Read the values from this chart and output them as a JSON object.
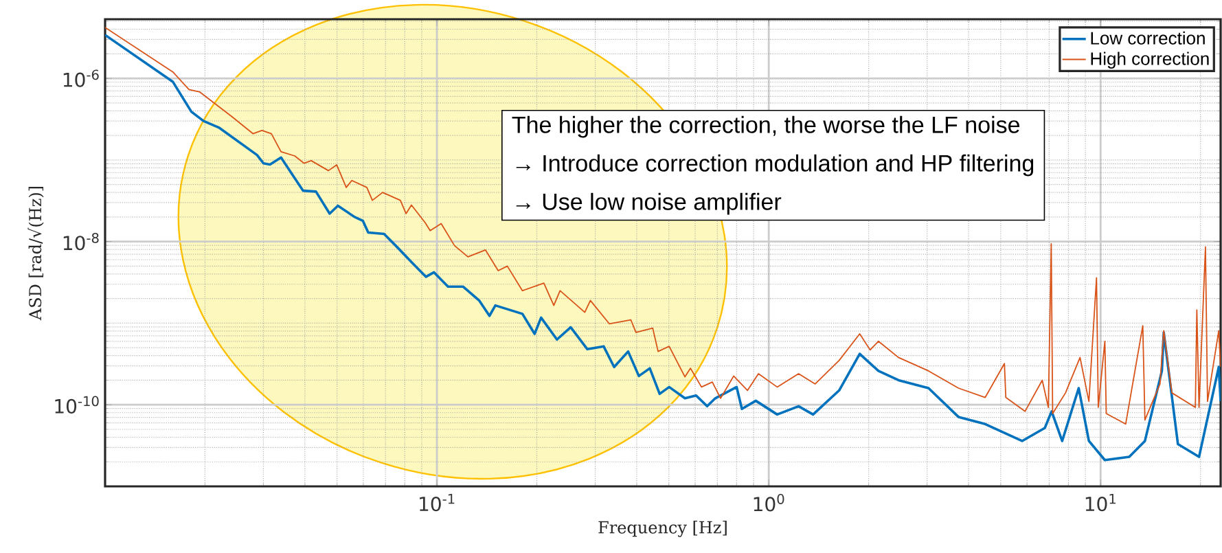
{
  "chart_data": {
    "type": "line",
    "xlabel": "Frequency [Hz]",
    "ylabel": "ASD [rad/√(Hz)]",
    "log": "xy",
    "grid": true,
    "legend": "top right",
    "xlim": [
      0.01,
      23
    ],
    "ylim": [
      1e-11,
      5.3e-06
    ],
    "xticks": [
      {
        "value": 0.1,
        "label": "10$^{-1}$"
      },
      {
        "value": 1,
        "label": "10$^{0}$"
      },
      {
        "value": 10,
        "label": "10$^{1}$"
      }
    ],
    "yticks": [
      {
        "value": 1e-10,
        "label": "10$^{-10}$"
      },
      {
        "value": 1e-08,
        "label": "10$^{-8}$"
      },
      {
        "value": 1e-06,
        "label": "10$^{-6}$"
      }
    ],
    "annotations": [
      "The higher the correction, the worse the LF noise",
      "→ Introduce correction modulation and HP filtering",
      "→ Use low noise amplifier"
    ],
    "series": [
      {
        "name": "Low correction",
        "color": "#0072bd",
        "x": [
          0.01,
          0.016,
          0.0182,
          0.0198,
          0.022,
          0.0287,
          0.03,
          0.0314,
          0.0339,
          0.0395,
          0.0432,
          0.0475,
          0.0503,
          0.0565,
          0.0598,
          0.0621,
          0.0693,
          0.0762,
          0.0838,
          0.0927,
          0.098,
          0.108,
          0.12,
          0.134,
          0.144,
          0.15,
          0.181,
          0.197,
          0.206,
          0.23,
          0.253,
          0.284,
          0.318,
          0.342,
          0.377,
          0.406,
          0.438,
          0.469,
          0.501,
          0.559,
          0.604,
          0.652,
          0.69,
          0.8,
          0.83,
          0.914,
          1.06,
          1.23,
          1.36,
          1.63,
          1.88,
          2.14,
          2.46,
          3.03,
          3.73,
          4.49,
          5.8,
          6.79,
          7.12,
          7.66,
          8.59,
          9.22,
          10.3,
          12.2,
          13.6,
          15.3,
          15.5,
          17.1,
          19.8,
          22.7,
          23
        ],
        "values": [
          3.4e-06,
          9.1e-07,
          3.9e-07,
          3e-07,
          2.5e-07,
          1.15e-07,
          9.1e-08,
          8.8e-08,
          1.07e-07,
          4.2e-08,
          4.1e-08,
          2.2e-08,
          2.75e-08,
          2e-08,
          1.8e-08,
          1.29e-08,
          1.24e-08,
          8.4e-09,
          5.6e-09,
          3.7e-09,
          4.2e-09,
          2.8e-09,
          2.8e-09,
          1.9e-09,
          1.23e-09,
          1.65e-09,
          1.3e-09,
          7.4e-10,
          1.17e-09,
          6.3e-10,
          8.9e-10,
          4.8e-10,
          5.2e-10,
          2.9e-10,
          4.5e-10,
          2.25e-10,
          2.8e-10,
          1.36e-10,
          1.65e-10,
          1.2e-10,
          1.3e-10,
          9.6e-11,
          1.2e-10,
          1.65e-10,
          8.9e-11,
          1.12e-10,
          7.6e-11,
          9.6e-11,
          7.6e-11,
          1.5e-10,
          4.2e-10,
          2.6e-10,
          2e-10,
          1.6e-10,
          7.1e-11,
          5.8e-11,
          3.6e-11,
          5.2e-11,
          8.3e-11,
          3.6e-11,
          1.6e-10,
          3.6e-11,
          2.1e-11,
          2.3e-11,
          3.6e-11,
          2.6e-10,
          7.7e-10,
          3.3e-11,
          2.3e-11,
          2.9e-10,
          1.1e-10
        ]
      },
      {
        "name": "High correction",
        "color": "#d95319",
        "x": [
          0.01,
          0.016,
          0.0179,
          0.0193,
          0.0241,
          0.0279,
          0.0297,
          0.0317,
          0.0339,
          0.0373,
          0.0398,
          0.0418,
          0.0471,
          0.0499,
          0.0533,
          0.0554,
          0.0615,
          0.0639,
          0.0686,
          0.0776,
          0.0807,
          0.0838,
          0.0922,
          0.0954,
          0.103,
          0.113,
          0.124,
          0.14,
          0.153,
          0.163,
          0.181,
          0.21,
          0.225,
          0.235,
          0.279,
          0.29,
          0.331,
          0.384,
          0.398,
          0.447,
          0.464,
          0.501,
          0.559,
          0.581,
          0.627,
          0.676,
          0.716,
          0.784,
          0.863,
          0.931,
          1.06,
          1.23,
          1.38,
          1.63,
          1.88,
          2.02,
          2.14,
          2.46,
          3.03,
          3.73,
          4.49,
          5.13,
          5.18,
          5.92,
          6.67,
          6.96,
          7.1,
          7.17,
          7.84,
          8.67,
          9.22,
          9.72,
          9.84,
          10.3,
          10.4,
          11.9,
          13.4,
          13.6,
          15.1,
          15.5,
          16.4,
          19.3,
          19.5,
          19.8,
          20.7,
          21.0,
          22.7,
          23
        ],
        "values": [
          4.2e-06,
          1.2e-06,
          7.3e-07,
          6.8e-07,
          3.4e-07,
          2.1e-07,
          2.3e-07,
          2.1e-07,
          1.26e-07,
          1.12e-07,
          9.1e-08,
          9.8e-08,
          7.4e-08,
          8.7e-08,
          4.6e-08,
          5.6e-08,
          4.6e-08,
          3.2e-08,
          4e-08,
          3.2e-08,
          2.2e-08,
          2.8e-08,
          1.7e-08,
          1.36e-08,
          1.66e-08,
          8.9e-09,
          6.5e-09,
          7.9e-09,
          4.4e-09,
          5e-09,
          2.5e-09,
          3.1e-09,
          1.65e-09,
          2.5e-09,
          1.36e-09,
          1.9e-09,
          9.8e-10,
          1.1e-09,
          7.7e-10,
          8.7e-10,
          4.5e-10,
          5.2e-10,
          2.2e-10,
          2.8e-10,
          1.65e-10,
          1.9e-10,
          1.2e-10,
          2.25e-10,
          1.5e-10,
          2.4e-10,
          1.65e-10,
          2.4e-10,
          1.8e-10,
          3.5e-10,
          7.4e-10,
          4.7e-10,
          6e-10,
          3.8e-10,
          2.6e-10,
          1.6e-10,
          1.23e-10,
          3.2e-10,
          1.23e-10,
          8.3e-11,
          2e-10,
          9.3e-11,
          9.4e-09,
          7.8e-11,
          1.4e-10,
          3.8e-10,
          1.1e-10,
          3.6e-09,
          9.3e-11,
          6e-10,
          7.8e-11,
          5.8e-11,
          9.3e-10,
          6.5e-11,
          1.8e-10,
          8.1e-10,
          1.4e-10,
          9.3e-11,
          1.45e-09,
          9.3e-11,
          8.6e-09,
          1.1e-10,
          8.1e-10,
          2.9e-10
        ]
      }
    ]
  }
}
